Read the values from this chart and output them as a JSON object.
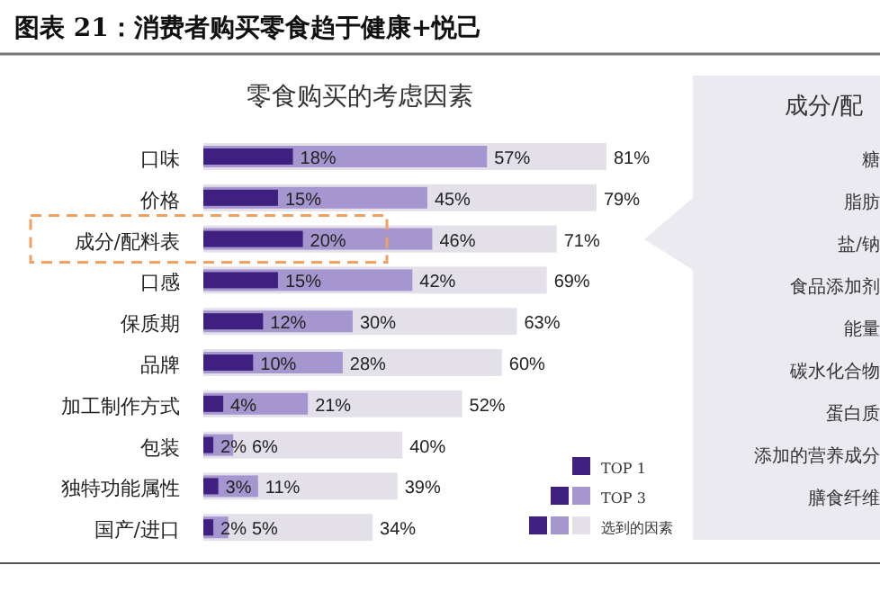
{
  "chart_data": [
    {
      "type": "bar",
      "orientation": "horizontal",
      "title": "图表 21：消费者购买零食趋于健康+悦己",
      "subtitle": "零食购买的考虑因素",
      "categories": [
        "口味",
        "价格",
        "成分/配料表",
        "口感",
        "保质期",
        "品牌",
        "加工制作方式",
        "包装",
        "独特功能属性",
        "国产/进口"
      ],
      "legend": "bottom right",
      "series": [
        {
          "name": "TOP 1",
          "color": "#3f1f80",
          "values": [
            18,
            15,
            20,
            15,
            12,
            10,
            4,
            2,
            3,
            2
          ],
          "value_labels": [
            "18%",
            "15%",
            "20%",
            "15%",
            "12%",
            "10%",
            "4%",
            "2%",
            "3%",
            "2%"
          ]
        },
        {
          "name": "TOP 3",
          "color": "#a696cf",
          "values": [
            57,
            45,
            46,
            42,
            30,
            28,
            21,
            6,
            11,
            5
          ],
          "value_labels": [
            "57%",
            "45%",
            "46%",
            "42%",
            "30%",
            "28%",
            "21%",
            "6%",
            "11%",
            "5%"
          ]
        },
        {
          "name": "选到的因素",
          "color": "#e3e0ea",
          "values": [
            81,
            79,
            71,
            69,
            63,
            60,
            52,
            40,
            39,
            34
          ],
          "value_labels": [
            "81%",
            "79%",
            "71%",
            "69%",
            "63%",
            "60%",
            "52%",
            "40%",
            "39%",
            "34%"
          ]
        }
      ]
    },
    {
      "type": "other",
      "title": "成分/配",
      "annotations": [
        "糖",
        "脂肪",
        "盐/钠",
        "食品添加剂",
        "能量",
        "碳水化合物",
        "蛋白质",
        "添加的营养成分",
        "膳食纤维"
      ]
    }
  ]
}
